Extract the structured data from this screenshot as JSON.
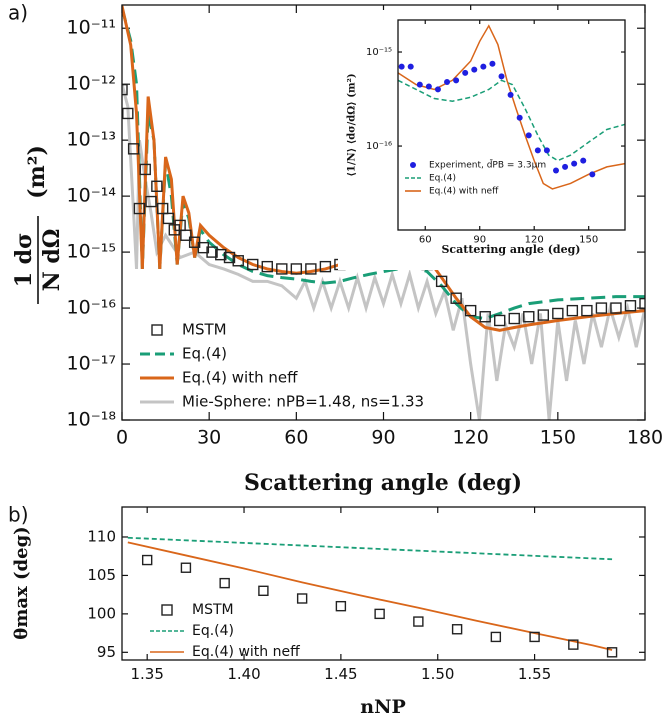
{
  "chart_data": [
    {
      "type": "line",
      "panel_label": "a)",
      "log_y": true,
      "xlabel": "Scattering angle (deg)",
      "ylabel": {
        "numerator": "1 dσ",
        "denominator": "N dΩ",
        "unit": "(m²)"
      },
      "xlim": [
        0,
        180
      ],
      "xticks": [
        0,
        30,
        60,
        90,
        120,
        150,
        180
      ],
      "ylim": [
        1e-18,
        2.6e-11
      ],
      "yticks": [
        {
          "value": 1e-18,
          "label": "10⁻¹⁸"
        },
        {
          "value": 1e-17,
          "label": "10⁻¹⁷"
        },
        {
          "value": 1e-16,
          "label": "10⁻¹⁶"
        },
        {
          "value": 1e-15,
          "label": "10⁻¹⁵"
        },
        {
          "value": 1e-14,
          "label": "10⁻¹⁴"
        },
        {
          "value": 1e-13,
          "label": "10⁻¹³"
        },
        {
          "value": 1e-12,
          "label": "10⁻¹²"
        },
        {
          "value": 1e-11,
          "label": "10⁻¹¹"
        }
      ],
      "legend": "lower left",
      "series": [
        {
          "name": "MSTM",
          "color": "#222222",
          "style": "square",
          "x": [
            0,
            2,
            4,
            6,
            8,
            10,
            12,
            14,
            16,
            18,
            20,
            22,
            25,
            28,
            31,
            34,
            37,
            40,
            45,
            50,
            55,
            60,
            65,
            70,
            75,
            80,
            85,
            90,
            95,
            100,
            105,
            110,
            115,
            120,
            125,
            130,
            135,
            140,
            145,
            150,
            155,
            160,
            165,
            170,
            175,
            180
          ],
          "values": [
            8e-13,
            3e-13,
            7e-14,
            6e-15,
            3e-14,
            8e-15,
            1.5e-14,
            6e-15,
            4e-15,
            2.5e-15,
            3e-15,
            2e-15,
            1.5e-15,
            1.2e-15,
            1e-15,
            9e-16,
            8e-16,
            7e-16,
            6e-16,
            5.5e-16,
            5e-16,
            5e-16,
            5e-16,
            5.5e-16,
            6e-16,
            7e-16,
            8e-16,
            8.5e-16,
            8.5e-16,
            8e-16,
            6e-16,
            3e-16,
            1.5e-16,
            9e-17,
            7e-17,
            6e-17,
            6.5e-17,
            7e-17,
            7.5e-17,
            8e-17,
            9e-17,
            9e-17,
            1e-16,
            1e-16,
            1.1e-16,
            1.2e-16
          ]
        },
        {
          "name": "Eq.(4)",
          "color": "#1a9e77",
          "style": "dashed",
          "x": [
            0,
            3,
            5,
            7,
            9,
            11,
            13,
            15,
            17,
            19,
            21,
            23,
            25,
            27,
            30,
            35,
            40,
            45,
            50,
            55,
            60,
            65,
            70,
            75,
            80,
            85,
            90,
            95,
            100,
            105,
            110,
            115,
            120,
            125,
            130,
            135,
            140,
            150,
            160,
            170,
            180
          ],
          "values": [
            2.3e-11,
            6e-12,
            1e-12,
            5e-16,
            3e-13,
            1e-13,
            5e-16,
            4e-14,
            1e-14,
            6e-16,
            8e-15,
            4e-15,
            8e-16,
            2.5e-15,
            1.5e-15,
            9e-16,
            6e-16,
            4.5e-16,
            3.8e-16,
            3.5e-16,
            3.3e-16,
            3e-16,
            2.8e-16,
            3e-16,
            3.5e-16,
            4e-16,
            4.5e-16,
            5e-16,
            5.5e-16,
            4.5e-16,
            2.5e-16,
            1.2e-16,
            7e-17,
            6.5e-17,
            8e-17,
            1e-16,
            1.2e-16,
            1.4e-16,
            1.5e-16,
            1.6e-16,
            1.6e-16
          ]
        },
        {
          "name": "Eq.(4) with neff",
          "color": "#d9661a",
          "style": "line",
          "x": [
            0,
            3,
            5,
            7,
            9,
            11,
            13,
            15,
            17,
            19,
            21,
            23,
            25,
            27,
            30,
            35,
            40,
            45,
            50,
            55,
            60,
            65,
            70,
            75,
            80,
            85,
            90,
            95,
            100,
            105,
            110,
            115,
            120,
            125,
            130,
            135,
            140,
            150,
            160,
            170,
            180
          ],
          "values": [
            2.5e-11,
            5e-12,
            3e-13,
            5e-16,
            6e-13,
            1e-13,
            5e-16,
            5e-14,
            2e-14,
            6e-16,
            1e-14,
            5e-15,
            8e-16,
            3e-15,
            2e-15,
            1.2e-15,
            8e-16,
            6e-16,
            5e-16,
            4.5e-16,
            4.2e-16,
            4.5e-16,
            5e-16,
            6e-16,
            8e-16,
            1.1e-15,
            1.6e-15,
            2e-15,
            1.5e-15,
            8e-16,
            3.5e-16,
            1.5e-16,
            7e-17,
            4.5e-17,
            4e-17,
            4.5e-17,
            5e-17,
            6e-17,
            7e-17,
            8e-17,
            9e-17
          ]
        },
        {
          "name": "Mie-Sphere: nPB=1.48, ns=1.33",
          "color": "#c4c4c4",
          "style": "line",
          "x": [
            0,
            2,
            4,
            5,
            6,
            8,
            10,
            12,
            15,
            20,
            25,
            30,
            35,
            40,
            45,
            50,
            55,
            60,
            63,
            66,
            69,
            72,
            75,
            78,
            81,
            84,
            87,
            90,
            93,
            96,
            99,
            102,
            105,
            108,
            111,
            114,
            117,
            120,
            123,
            126,
            129,
            132,
            135,
            138,
            141,
            144,
            147,
            150,
            153,
            156,
            159,
            162,
            165,
            168,
            171,
            174,
            177,
            180
          ],
          "values": [
            1e-12,
            4e-13,
            5e-15,
            5e-16,
            1e-13,
            2e-14,
            5e-15,
            1e-15,
            2e-15,
            8e-16,
            1e-15,
            6e-16,
            5e-16,
            4e-16,
            3e-16,
            3e-16,
            2.5e-16,
            1.5e-16,
            3e-16,
            1e-16,
            3e-16,
            1e-16,
            3e-16,
            1e-16,
            3.5e-16,
            1e-16,
            3.5e-16,
            1.2e-16,
            4e-16,
            1.2e-16,
            4e-16,
            1e-16,
            3e-16,
            8e-17,
            2e-16,
            4e-17,
            1.5e-16,
            1e-17,
            1e-18,
            8e-17,
            5e-18,
            5e-17,
            2e-17,
            8e-17,
            1e-17,
            8e-17,
            1e-18,
            6e-17,
            5e-18,
            6e-17,
            1e-17,
            8e-17,
            2e-17,
            1e-16,
            3e-17,
            1e-16,
            2e-17,
            1e-16
          ]
        }
      ]
    },
    {
      "type": "line",
      "log_y": true,
      "xlabel": "Scattering angle (deg)",
      "ylabel": "⟨1/N⟩ ⟨dσ/dΩ⟩ (m²)",
      "xlim": [
        45,
        170
      ],
      "xticks": [
        60,
        90,
        120,
        150
      ],
      "ylim": [
        1.28e-17,
        2.19e-15
      ],
      "yticks": [
        {
          "value": 1e-16,
          "label": "10⁻¹⁶"
        },
        {
          "value": 1e-15,
          "label": "10⁻¹⁵"
        }
      ],
      "legend": "lower left",
      "series": [
        {
          "name": "Experiment, d̄PB = 3.3μm",
          "color": "#1f1fe0",
          "style": "circle",
          "x": [
            47,
            52,
            57,
            62,
            67,
            72,
            77,
            82,
            87,
            92,
            97,
            102,
            107,
            112,
            117,
            122,
            127,
            132,
            137,
            142,
            147,
            152
          ],
          "values": [
            7e-16,
            7e-16,
            4.5e-16,
            4.3e-16,
            4e-16,
            4.8e-16,
            5e-16,
            6e-16,
            6.5e-16,
            7e-16,
            7.5e-16,
            5.5e-16,
            3.5e-16,
            2e-16,
            1.3e-16,
            9e-17,
            9e-17,
            5.5e-17,
            6e-17,
            6.5e-17,
            7e-17,
            5e-17
          ]
        },
        {
          "name": "Eq.(4)",
          "color": "#1a9e77",
          "style": "dashed",
          "x": [
            45,
            55,
            65,
            75,
            85,
            95,
            102,
            108,
            115,
            122,
            128,
            133,
            140,
            150,
            160,
            170
          ],
          "values": [
            5e-16,
            4e-16,
            3.2e-16,
            3e-16,
            3.3e-16,
            4e-16,
            5e-16,
            4.5e-16,
            2.5e-16,
            1.3e-16,
            8e-17,
            7e-17,
            8e-17,
            1.1e-16,
            1.5e-16,
            1.7e-16
          ]
        },
        {
          "name": "Eq.(4) with neff",
          "color": "#d9661a",
          "style": "line",
          "x": [
            45,
            55,
            65,
            75,
            85,
            90,
            95,
            100,
            105,
            110,
            115,
            120,
            125,
            130,
            140,
            150,
            160,
            170
          ],
          "values": [
            6e-16,
            4.5e-16,
            4e-16,
            5e-16,
            8e-16,
            1.3e-15,
            1.9e-15,
            1.2e-15,
            5e-16,
            2.5e-16,
            1.3e-16,
            7e-17,
            4e-17,
            3.5e-17,
            4e-17,
            5e-17,
            6e-17,
            6.5e-17
          ]
        }
      ]
    },
    {
      "type": "line",
      "panel_label": "b)",
      "log_y": false,
      "xlabel": "nNP",
      "ylabel": "θmax (deg)",
      "xlim": [
        1.337,
        1.607
      ],
      "xticks": [
        1.35,
        {
          "value": 1.4,
          "label": "1.40"
        },
        1.45,
        {
          "value": 1.5,
          "label": "1.50"
        },
        1.55
      ],
      "ylim": [
        94,
        113.9
      ],
      "yticks": [
        95,
        100,
        105,
        110
      ],
      "legend": "lower left",
      "series": [
        {
          "name": "MSTM",
          "color": "#222222",
          "style": "square",
          "x": [
            1.35,
            1.37,
            1.39,
            1.41,
            1.43,
            1.45,
            1.47,
            1.49,
            1.51,
            1.53,
            1.55,
            1.57,
            1.59
          ],
          "values": [
            107,
            106,
            104,
            103,
            102,
            101,
            100,
            99,
            98,
            97,
            97,
            96,
            95
          ]
        },
        {
          "name": "Eq.(4)",
          "color": "#1a9e77",
          "style": "dashed",
          "x": [
            1.34,
            1.59
          ],
          "values": [
            109.9,
            107.1
          ]
        },
        {
          "name": "Eq.(4) with neff",
          "color": "#d9661a",
          "style": "line",
          "x": [
            1.34,
            1.37,
            1.4,
            1.43,
            1.46,
            1.49,
            1.52,
            1.55,
            1.58,
            1.59
          ],
          "values": [
            109.3,
            107.6,
            105.9,
            104.1,
            102.4,
            100.8,
            99.1,
            97.5,
            95.9,
            95.3
          ]
        }
      ]
    }
  ]
}
